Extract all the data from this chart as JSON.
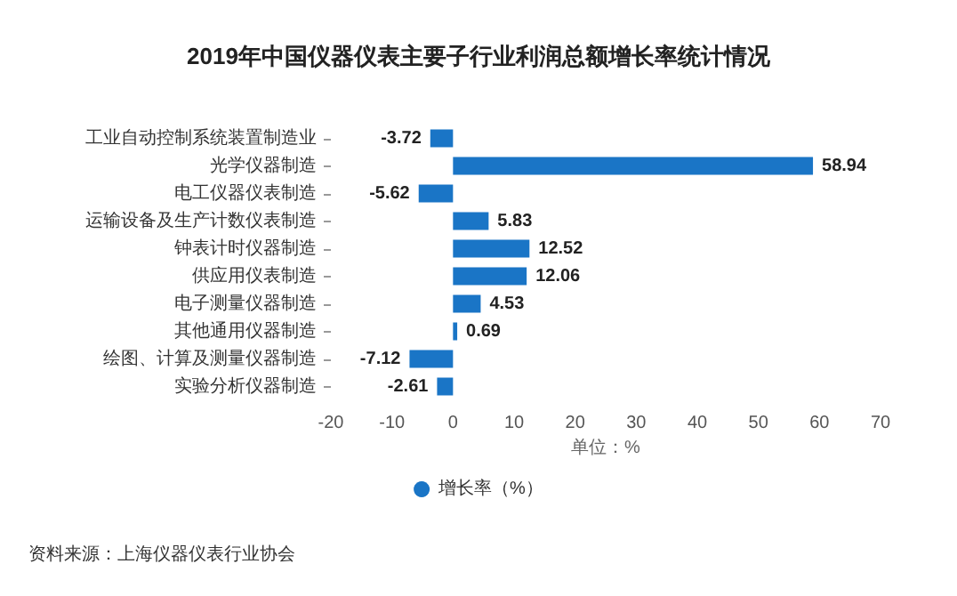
{
  "chart_data": {
    "type": "bar",
    "orientation": "horizontal",
    "title": "2019年中国仪器仪表主要子行业利润总额增长率统计情况",
    "categories": [
      "工业自动控制系统装置制造业",
      "光学仪器制造",
      "电工仪器仪表制造",
      "运输设备及生产计数仪表制造",
      "钟表计时仪器制造",
      "供应用仪表制造",
      "电子测量仪器制造",
      "其他通用仪器制造",
      "绘图、计算及测量仪器制造",
      "实验分析仪器制造"
    ],
    "series": [
      {
        "name": "增长率（%）",
        "color": "#1a75c6",
        "values": [
          -3.72,
          58.94,
          -5.62,
          5.83,
          12.52,
          12.06,
          4.53,
          0.69,
          -7.12,
          -2.61
        ]
      }
    ],
    "xlim": [
      -20,
      70
    ],
    "xticks": [
      -20,
      -10,
      0,
      10,
      20,
      30,
      40,
      50,
      60,
      70
    ],
    "xlabel": "单位：%",
    "data_labels": true,
    "grid": false,
    "legend": "bottom",
    "annotations": [
      "资料来源：上海仪器仪表行业协会"
    ]
  }
}
